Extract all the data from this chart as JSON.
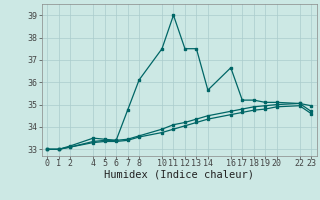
{
  "xlabel": "Humidex (Indice chaleur)",
  "bg_color": "#cce8e4",
  "grid_color": "#aacccc",
  "line_color": "#006666",
  "xlim": [
    -0.5,
    23.5
  ],
  "ylim": [
    32.7,
    39.5
  ],
  "xtick_positions": [
    0,
    1,
    2,
    4,
    5,
    6,
    7,
    8,
    10,
    11,
    12,
    13,
    14,
    16,
    17,
    18,
    19,
    20,
    22,
    23
  ],
  "xtick_labels": [
    "0",
    "1",
    "2",
    "4",
    "5",
    "6",
    "7",
    "8",
    "10",
    "11",
    "12",
    "13",
    "14",
    "16",
    "17",
    "18",
    "19",
    "20",
    "22",
    "23"
  ],
  "yticks": [
    33,
    34,
    35,
    36,
    37,
    38,
    39
  ],
  "series1_x": [
    0,
    1,
    2,
    4,
    5,
    6,
    7,
    8,
    10,
    11,
    12,
    13,
    14,
    16,
    17,
    18,
    19,
    20,
    22,
    23
  ],
  "series1_y": [
    33.0,
    33.0,
    33.15,
    33.5,
    33.45,
    33.4,
    34.75,
    36.1,
    37.5,
    39.0,
    37.5,
    37.5,
    35.65,
    36.65,
    35.2,
    35.2,
    35.1,
    35.1,
    35.05,
    34.95
  ],
  "series2_x": [
    0,
    1,
    2,
    4,
    5,
    6,
    7,
    8,
    10,
    11,
    12,
    13,
    14,
    16,
    17,
    18,
    19,
    20,
    22,
    23
  ],
  "series2_y": [
    33.0,
    33.0,
    33.1,
    33.3,
    33.35,
    33.35,
    33.4,
    33.55,
    33.75,
    33.9,
    34.05,
    34.2,
    34.35,
    34.55,
    34.65,
    34.75,
    34.8,
    34.9,
    34.95,
    34.6
  ],
  "series3_x": [
    0,
    1,
    2,
    4,
    5,
    6,
    7,
    8,
    10,
    11,
    12,
    13,
    14,
    16,
    17,
    18,
    19,
    20,
    22,
    23
  ],
  "series3_y": [
    33.0,
    33.0,
    33.1,
    33.35,
    33.4,
    33.4,
    33.45,
    33.6,
    33.9,
    34.1,
    34.2,
    34.35,
    34.5,
    34.7,
    34.8,
    34.9,
    34.95,
    35.0,
    35.05,
    34.7
  ],
  "tick_fontsize": 6,
  "xlabel_fontsize": 7.5,
  "marker_size": 2,
  "linewidth": 0.9
}
